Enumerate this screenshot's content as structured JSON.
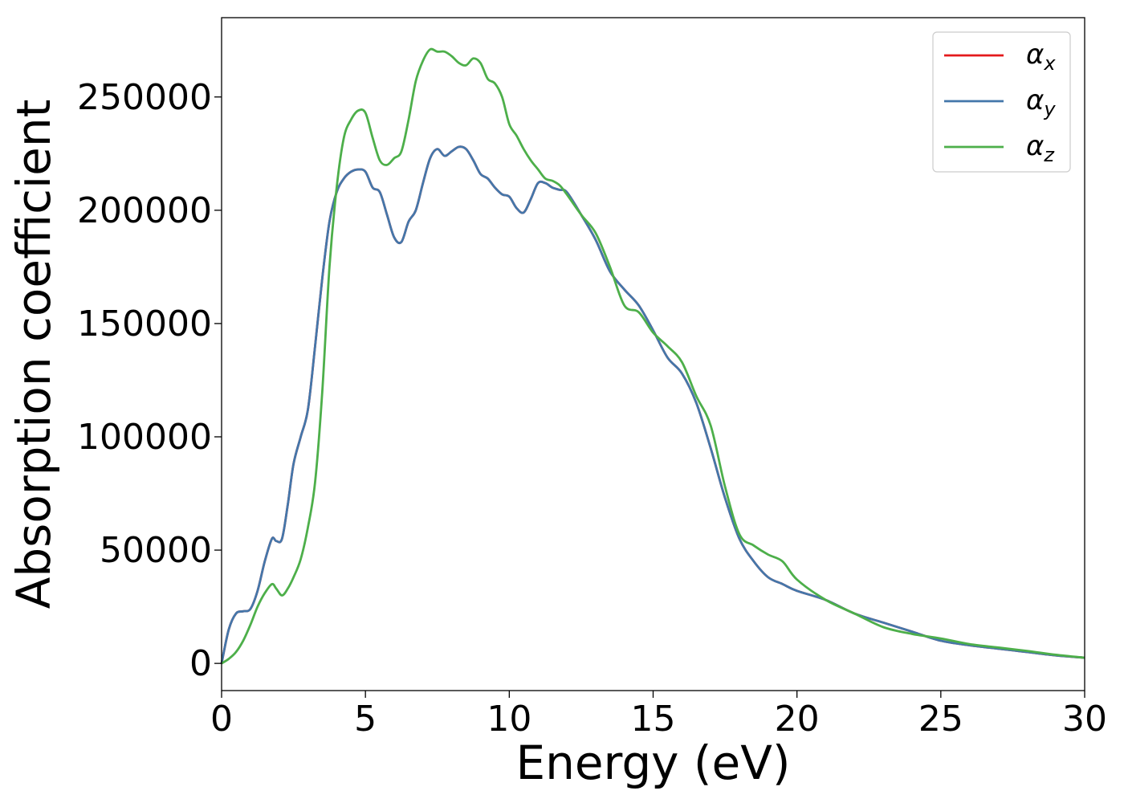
{
  "chart_data": {
    "type": "line",
    "title": "",
    "xlabel": "Energy (eV)",
    "ylabel": "Absorption coefficient",
    "xlim": [
      0,
      30
    ],
    "ylim": [
      -12000,
      285000
    ],
    "xticks": [
      0,
      5,
      10,
      15,
      20,
      25,
      30
    ],
    "xtick_labels": [
      "0",
      "5",
      "10",
      "15",
      "20",
      "25",
      "30"
    ],
    "yticks": [
      0,
      50000,
      100000,
      150000,
      200000,
      250000
    ],
    "ytick_labels": [
      "0",
      "50000",
      "100000",
      "150000",
      "200000",
      "250000"
    ],
    "grid": false,
    "legend_position": "top-right",
    "x": [
      0,
      0.25,
      0.5,
      0.75,
      1,
      1.25,
      1.5,
      1.75,
      1.9,
      2.1,
      2.3,
      2.5,
      2.75,
      3,
      3.25,
      3.5,
      3.75,
      4,
      4.25,
      4.5,
      4.75,
      5,
      5.25,
      5.5,
      5.75,
      6,
      6.25,
      6.5,
      6.75,
      7,
      7.25,
      7.5,
      7.75,
      8,
      8.25,
      8.5,
      8.75,
      9,
      9.25,
      9.5,
      9.75,
      10,
      10.25,
      10.5,
      10.75,
      11,
      11.25,
      11.5,
      11.75,
      12,
      12.5,
      13,
      13.5,
      14,
      14.5,
      15,
      15.5,
      16,
      16.5,
      17,
      17.5,
      18,
      18.5,
      19,
      19.5,
      20,
      21,
      22,
      23,
      24,
      25,
      26,
      27,
      28,
      29,
      30
    ],
    "series": [
      {
        "name": "α_x",
        "label_base": "α",
        "label_sub": "x",
        "color": "#e41a1c",
        "values": [
          0,
          15000,
          22000,
          23000,
          24000,
          32000,
          45000,
          55000,
          54000,
          55000,
          70000,
          88000,
          100000,
          112000,
          140000,
          170000,
          195000,
          208000,
          214000,
          217000,
          218000,
          217000,
          210000,
          208000,
          198000,
          188000,
          186000,
          195000,
          200000,
          212000,
          223000,
          227000,
          224000,
          226000,
          228000,
          227000,
          222000,
          216000,
          214000,
          210000,
          207000,
          206000,
          201000,
          199000,
          205000,
          212000,
          212000,
          210000,
          209000,
          208000,
          198000,
          187000,
          173000,
          165000,
          158000,
          147000,
          135000,
          128000,
          115000,
          95000,
          73000,
          55000,
          45000,
          38000,
          35000,
          32000,
          28000,
          22000,
          18000,
          14000,
          10000,
          8000,
          6500,
          5000,
          3500,
          2500
        ]
      },
      {
        "name": "α_y",
        "label_base": "α",
        "label_sub": "y",
        "color": "#4477aa",
        "values": [
          0,
          15000,
          22000,
          23000,
          24000,
          32000,
          45000,
          55000,
          54000,
          55000,
          70000,
          88000,
          100000,
          112000,
          140000,
          170000,
          195000,
          208000,
          214000,
          217000,
          218000,
          217000,
          210000,
          208000,
          198000,
          188000,
          186000,
          195000,
          200000,
          212000,
          223000,
          227000,
          224000,
          226000,
          228000,
          227000,
          222000,
          216000,
          214000,
          210000,
          207000,
          206000,
          201000,
          199000,
          205000,
          212000,
          212000,
          210000,
          209000,
          208000,
          198000,
          187000,
          173000,
          165000,
          158000,
          147000,
          135000,
          128000,
          115000,
          95000,
          73000,
          55000,
          45000,
          38000,
          35000,
          32000,
          28000,
          22000,
          18000,
          14000,
          10000,
          8000,
          6500,
          5000,
          3500,
          2500
        ]
      },
      {
        "name": "α_z",
        "label_base": "α",
        "label_sub": "z",
        "color": "#4daf4a",
        "values": [
          0,
          2000,
          5000,
          10000,
          17000,
          25000,
          31000,
          35000,
          33000,
          30000,
          33000,
          38000,
          46000,
          60000,
          80000,
          120000,
          175000,
          210000,
          232000,
          240000,
          244000,
          243000,
          232000,
          222000,
          220000,
          223000,
          226000,
          240000,
          257000,
          266000,
          271000,
          270000,
          270000,
          268000,
          265000,
          264000,
          267000,
          265000,
          258000,
          256000,
          250000,
          238000,
          233000,
          227000,
          222000,
          218000,
          214000,
          213000,
          211000,
          207000,
          198000,
          190000,
          175000,
          158000,
          155000,
          146000,
          140000,
          133000,
          118000,
          105000,
          78000,
          57000,
          52000,
          48000,
          45000,
          37000,
          28000,
          22000,
          16000,
          13000,
          11000,
          8500,
          7000,
          5500,
          3800,
          2500
        ]
      }
    ]
  }
}
